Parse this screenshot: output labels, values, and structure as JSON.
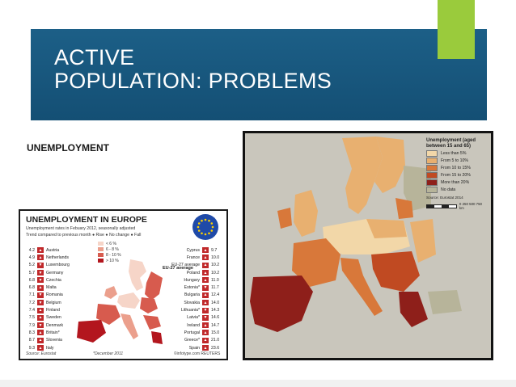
{
  "slide": {
    "title_line1": "ACTIVE",
    "title_line2": "POPULATION: PROBLEMS",
    "subheading": "UNEMPLOYMENT"
  },
  "infographic": {
    "title": "UNEMPLOYMENT IN EUROPE",
    "subtitle": "Unemployment rates in Febuary 2012, seasonally adjusted",
    "trend_line": "Trend compared to previous month  ● Rise  ● No change  ● Fall",
    "legend": [
      "< 6 %",
      "6 - 8 %",
      "8 - 10 %",
      "> 10 %"
    ],
    "eu_average": "EU-27 average",
    "left_countries": [
      {
        "value": "4.2",
        "name": "Austria"
      },
      {
        "value": "4.9",
        "name": "Netherlands"
      },
      {
        "value": "5.2",
        "name": "Luxembourg"
      },
      {
        "value": "5.7",
        "name": "Germany"
      },
      {
        "value": "6.8",
        "name": "Czechia"
      },
      {
        "value": "6.8",
        "name": "Malta"
      },
      {
        "value": "7.1",
        "name": "Romania"
      },
      {
        "value": "7.2",
        "name": "Belgium"
      },
      {
        "value": "7.4",
        "name": "Finland"
      },
      {
        "value": "7.5",
        "name": "Sweden"
      },
      {
        "value": "7.9",
        "name": "Denmark"
      },
      {
        "value": "8.3",
        "name": "Britain*"
      },
      {
        "value": "8.7",
        "name": "Slovenia"
      },
      {
        "value": "9.3",
        "name": "Italy"
      }
    ],
    "right_countries": [
      {
        "value": "9.7",
        "name": "Cyprus"
      },
      {
        "value": "10.0",
        "name": "France"
      },
      {
        "value": "10.2",
        "name": "EU-27 average"
      },
      {
        "value": "10.2",
        "name": "Poland"
      },
      {
        "value": "11.0",
        "name": "Hungary"
      },
      {
        "value": "11.7",
        "name": "Estonia*"
      },
      {
        "value": "12.4",
        "name": "Bulgaria"
      },
      {
        "value": "14.0",
        "name": "Slovakia"
      },
      {
        "value": "14.3",
        "name": "Lithuania*"
      },
      {
        "value": "14.6",
        "name": "Latvia*"
      },
      {
        "value": "14.7",
        "name": "Ireland"
      },
      {
        "value": "15.0",
        "name": "Portugal"
      },
      {
        "value": "21.0",
        "name": "Greece*"
      },
      {
        "value": "23.6",
        "name": "Spain"
      }
    ],
    "source": "Source: Eurostat",
    "footnote": "*December 2011",
    "credit": "©infotype.com  REUTERS"
  },
  "map": {
    "legend_title": "Unemployment (aged between 15 and 65)",
    "legend_items": [
      {
        "label": "Less than 5%",
        "color": "#f2d7a8"
      },
      {
        "label": "From 5 to 10%",
        "color": "#e8b070"
      },
      {
        "label": "From 10 to 15%",
        "color": "#d8783a"
      },
      {
        "label": "From 15 to 20%",
        "color": "#c04a22"
      },
      {
        "label": "More than 20%",
        "color": "#8e1f1a"
      },
      {
        "label": "No data",
        "color": "#b7b49a"
      }
    ],
    "source": "Source: Eurostat 2014",
    "scale_label": "0   250   500   750 km"
  },
  "colors": {
    "title_band": "#1c5f87",
    "accent_green": "#9acb3c",
    "map_background": "#c9c6bc"
  }
}
